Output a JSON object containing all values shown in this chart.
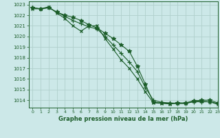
{
  "title": "Graphe pression niveau de la mer (hPa)",
  "bg_color": "#cce8e8",
  "grid_color": "#b0d0cc",
  "line_color": "#1a5c28",
  "xlim": [
    -0.5,
    23
  ],
  "ylim": [
    1013.3,
    1023.3
  ],
  "yticks": [
    1014,
    1015,
    1016,
    1017,
    1018,
    1019,
    1020,
    1021,
    1022,
    1023
  ],
  "xticks": [
    0,
    1,
    2,
    3,
    4,
    5,
    6,
    7,
    8,
    9,
    10,
    11,
    12,
    13,
    14,
    15,
    16,
    17,
    18,
    19,
    20,
    21,
    22,
    23
  ],
  "series": [
    [
      1022.7,
      1022.6,
      1022.7,
      1022.3,
      1022.0,
      1021.8,
      1021.5,
      1021.1,
      1020.8,
      1020.3,
      1019.8,
      1019.2,
      1018.6,
      1017.2,
      1015.5,
      1013.8,
      1013.75,
      1013.7,
      1013.75,
      1013.75,
      1013.95,
      1014.0,
      1014.0,
      1013.75
    ],
    [
      1022.7,
      1022.6,
      1022.7,
      1022.3,
      1021.9,
      1021.5,
      1021.2,
      1020.9,
      1020.7,
      1020.0,
      1019.2,
      1018.4,
      1017.6,
      1016.7,
      1015.2,
      1014.0,
      1013.8,
      1013.75,
      1013.7,
      1013.7,
      1013.85,
      1013.85,
      1013.85,
      1013.7
    ],
    [
      1022.6,
      1022.6,
      1022.8,
      1022.2,
      1021.7,
      1021.0,
      1020.5,
      1021.0,
      1021.0,
      1019.8,
      1018.8,
      1017.8,
      1017.0,
      1016.0,
      1014.8,
      1013.75,
      1013.7,
      1013.65,
      1013.7,
      1013.7,
      1013.9,
      1013.9,
      1013.85,
      1013.6
    ]
  ]
}
